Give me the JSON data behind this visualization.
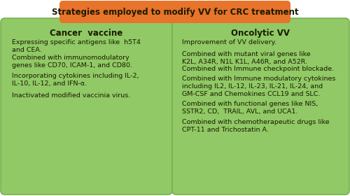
{
  "title": "Strategies employed to modify VV for CRC treatment",
  "title_bg": "#E8732A",
  "title_color": "#1A1A00",
  "panel_bg": "#90C965",
  "panel_edge": "#78B050",
  "fig_bg": "#FFFFFF",
  "left_header": "Cancer  vaccine",
  "left_items": [
    "Expressing specific antigens like  h5T4\nand CEA.",
    "Combined with immunomodulatory\ngenes like CD70, ICAM-1, and CD80.",
    "Incorporating cytokines including IL-2,\nIL-10, IL-12, and IFN-α.",
    "Inactivated modified vaccinia virus."
  ],
  "right_header": "Oncolytic VV",
  "right_items": [
    "Improvement of VV delivery.",
    "Combined with mutant viral genes like\nK2L, A34R, N1L K1L, A46R, and A52R.",
    "Combined with Immune checkpoint blockade.",
    "Combined with Immune modulatory cytokines\nincluding IL2, IL-12, IL-23, IL-21, IL-24, and\nGM-CSF and Chemokines CCL19 and SLC.",
    "Combined with functional genes like NIS,\nSSTR2, CD,  TRAIL, AVL, and UCA1.",
    "Combined with chemotherapeutic drugs like\nCPT-11 and Trichostatin A."
  ],
  "text_color": "#1A1A00",
  "header_fontsize": 8.5,
  "body_fontsize": 6.8
}
